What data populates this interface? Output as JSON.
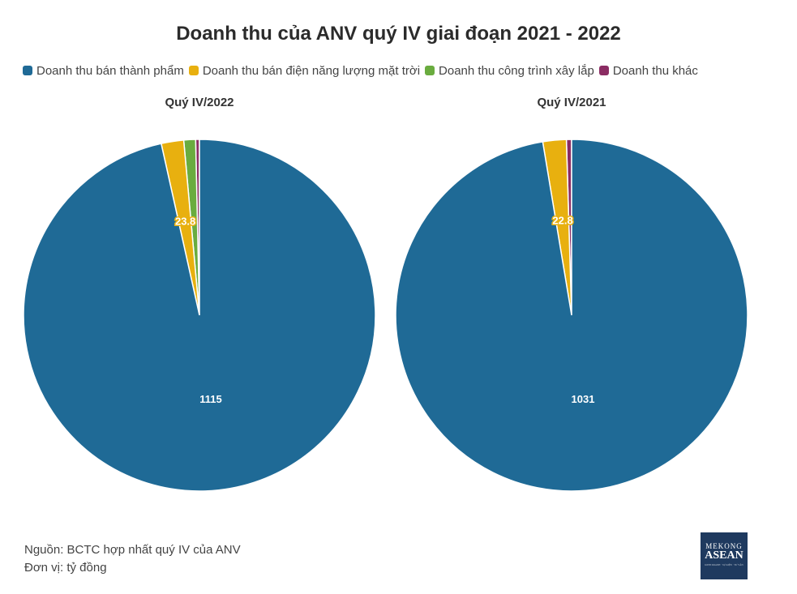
{
  "colors": {
    "ban_thanh_pham": "#1f6a96",
    "dien_nang_luong": "#e8b00f",
    "cong_trinh": "#6aac3f",
    "khac": "#8b2c63"
  },
  "chart_data": {
    "type": "pie",
    "title": "Doanh thu của ANV quý IV giai đoạn 2021 - 2022",
    "legend": [
      "Doanh thu bán thành phẩm",
      "Doanh thu bán điện năng lượng mặt trời",
      "Doanh thu công trình xây lắp",
      "Doanh thu khác"
    ],
    "legend_position": "top-left",
    "pies": [
      {
        "title": "Quý IV/2022",
        "slices": [
          {
            "label": "Doanh thu bán thành phẩm",
            "value": 1115,
            "display": "1115",
            "color_key": "ban_thanh_pham"
          },
          {
            "label": "Doanh thu bán điện năng lượng mặt trời",
            "value": 23.8,
            "display": "23.8",
            "color_key": "dien_nang_luong"
          },
          {
            "label": "Doanh thu công trình xây lắp",
            "value": 12.5,
            "display": "",
            "color_key": "cong_trinh"
          },
          {
            "label": "Doanh thu khác",
            "value": 4,
            "display": "",
            "color_key": "khac"
          }
        ]
      },
      {
        "title": "Quý IV/2021",
        "slices": [
          {
            "label": "Doanh thu bán thành phẩm",
            "value": 1031,
            "display": "1031",
            "color_key": "ban_thanh_pham"
          },
          {
            "label": "Doanh thu bán điện năng lượng mặt trời",
            "value": 22.8,
            "display": "22.8",
            "color_key": "dien_nang_luong"
          },
          {
            "label": "Doanh thu công trình xây lắp",
            "value": 0,
            "display": "",
            "color_key": "cong_trinh"
          },
          {
            "label": "Doanh thu khác",
            "value": 5,
            "display": "",
            "color_key": "khac"
          }
        ]
      }
    ]
  },
  "footer": {
    "source": "Nguồn: BCTC hợp nhất quý IV của ANV",
    "unit": "Đơn vị: tỷ đồng"
  },
  "logo": {
    "line1": "MEKONG",
    "line2": "ASEAN",
    "line3": "KINH DOANH · SỰ KIỆN · TƯ VẤN"
  }
}
